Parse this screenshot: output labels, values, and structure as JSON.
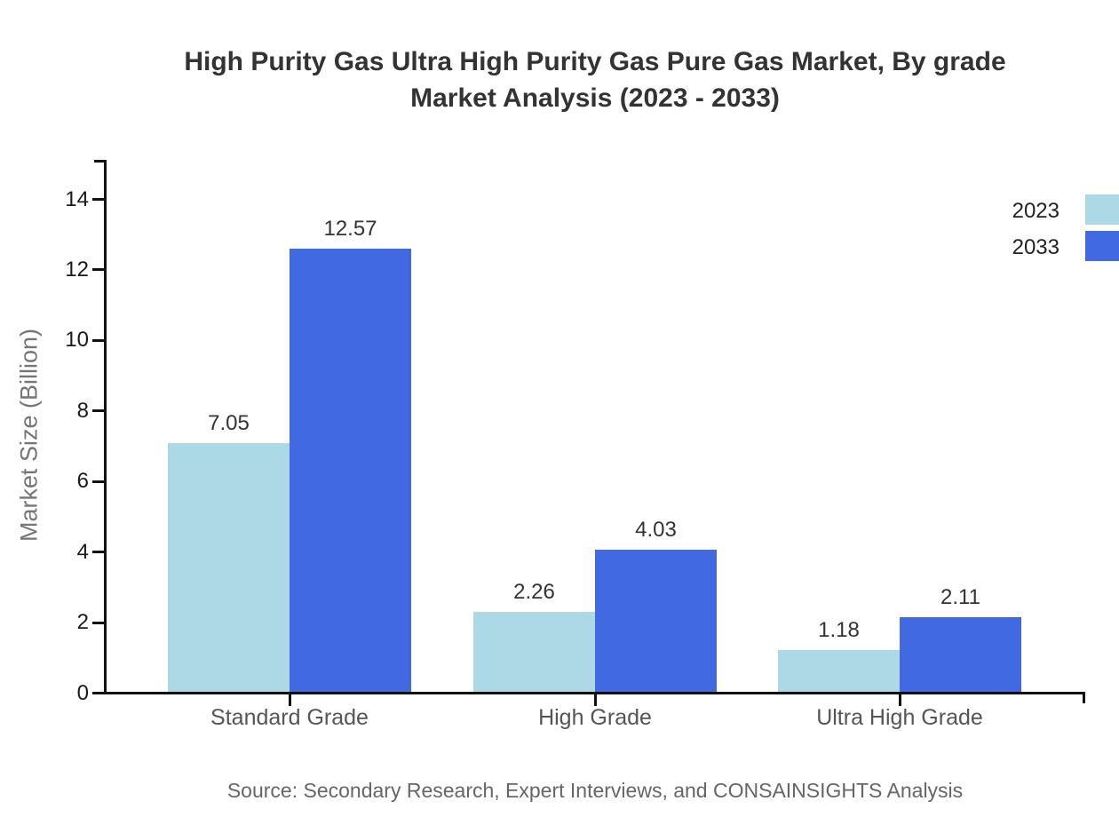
{
  "title": {
    "line1": "High Purity Gas Ultra High Purity Gas Pure Gas Market, By grade",
    "line2": "Market Analysis (2023 - 2033)"
  },
  "source": {
    "text": "Source: Secondary Research, Expert Interviews, and CONSAINSIGHTS Analysis"
  },
  "colors": {
    "background": "#ffffff",
    "axis": "#111111",
    "title_text": "#333333",
    "tick_label_text": "#1a1a1a",
    "category_label_text": "#555555",
    "muted_text": "#757575",
    "series_2023": "#ADD8E6",
    "series_2033": "#4169E1"
  },
  "chart_data": {
    "type": "bar",
    "title": "High Purity Gas Ultra High Purity Gas Pure Gas Market, By grade Market Analysis (2023 - 2033)",
    "categories": [
      "Standard Grade",
      "High Grade",
      "Ultra High Grade"
    ],
    "series": [
      {
        "name": "2023",
        "color": "#ADD8E6",
        "values": [
          7.05,
          2.26,
          1.18
        ]
      },
      {
        "name": "2033",
        "color": "#4169E1",
        "values": [
          12.57,
          4.03,
          2.11
        ]
      }
    ],
    "xlabel": "",
    "ylabel": "Market Size (Billion)",
    "yticks": [
      0,
      2,
      4,
      6,
      8,
      10,
      12,
      14
    ],
    "ylim": [
      0,
      15.1
    ],
    "grid": false,
    "legend_position": "top-right",
    "value_labels": true,
    "value_label_decimals": 2
  }
}
